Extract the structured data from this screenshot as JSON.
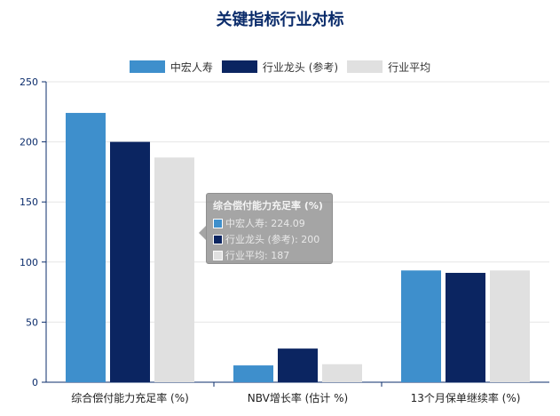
{
  "colors": {
    "series_1": "#3e8fcc",
    "series_2": "#0b2561",
    "series_3": "#e0e0e0",
    "axis": "#0b2c6b",
    "grid": "#e6e6e6"
  },
  "chart_data": {
    "type": "bar",
    "title": "关键指标行业对标",
    "categories": [
      "综合偿付能力充足率 (%)",
      "NBV增长率 (估计 %)",
      "13个月保单继续率 (%)"
    ],
    "series": [
      {
        "name": "中宏人寿",
        "values": [
          224.09,
          14,
          93
        ]
      },
      {
        "name": "行业龙头 (参考)",
        "values": [
          200,
          28,
          91
        ]
      },
      {
        "name": "行业平均",
        "values": [
          187,
          15,
          93
        ]
      }
    ],
    "ylim": [
      0,
      250
    ],
    "yticks": [
      0,
      50,
      100,
      150,
      200,
      250
    ],
    "grid": true,
    "legend_position": "top"
  },
  "tooltip": {
    "title": "综合偿付能力充足率 (%)",
    "rows": [
      "中宏人寿: 224.09",
      "行业龙头 (参考): 200",
      "行业平均: 187"
    ]
  }
}
